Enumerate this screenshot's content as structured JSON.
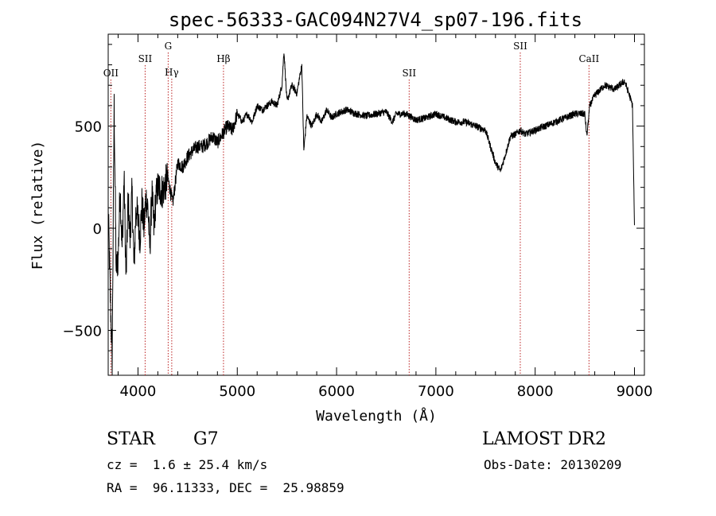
{
  "chart_data": {
    "type": "line",
    "title": "spec-56333-GAC094N27V4_sp07-196.fits",
    "xlabel": "Wavelength (Å)",
    "ylabel": "Flux (relative)",
    "xlim": [
      3700,
      9100
    ],
    "ylim": [
      -720,
      950
    ],
    "x_ticks": [
      4000,
      5000,
      6000,
      7000,
      8000,
      9000
    ],
    "y_ticks": [
      -500,
      0,
      500
    ],
    "x_tick_labels": [
      "4000",
      "5000",
      "6000",
      "7000",
      "8000",
      "9000"
    ],
    "y_tick_labels": [
      "−500",
      "0",
      "500"
    ],
    "grid": false,
    "series": [
      {
        "name": "flux",
        "x": [
          3700,
          3720,
          3740,
          3760,
          3780,
          3800,
          3820,
          3840,
          3860,
          3880,
          3900,
          3920,
          3940,
          3960,
          3980,
          4000,
          4020,
          4040,
          4060,
          4080,
          4100,
          4120,
          4140,
          4160,
          4180,
          4200,
          4250,
          4300,
          4350,
          4400,
          4450,
          4500,
          4550,
          4600,
          4650,
          4700,
          4750,
          4800,
          4850,
          4900,
          4950,
          5000,
          5050,
          5100,
          5150,
          5200,
          5250,
          5300,
          5350,
          5400,
          5450,
          5470,
          5500,
          5550,
          5600,
          5650,
          5670,
          5700,
          5750,
          5800,
          5850,
          5900,
          5950,
          6000,
          6100,
          6200,
          6300,
          6400,
          6500,
          6563,
          6600,
          6700,
          6800,
          6900,
          7000,
          7100,
          7200,
          7300,
          7400,
          7500,
          7550,
          7600,
          7650,
          7700,
          7750,
          7800,
          7850,
          7900,
          8000,
          8100,
          8200,
          8300,
          8400,
          8500,
          8520,
          8550,
          8600,
          8700,
          8800,
          8900,
          8950,
          8980,
          9000
        ],
        "values": [
          100,
          -300,
          -650,
          600,
          -200,
          -150,
          200,
          -100,
          250,
          -260,
          150,
          -50,
          180,
          -200,
          100,
          50,
          -50,
          120,
          0,
          150,
          100,
          -100,
          180,
          0,
          150,
          200,
          180,
          250,
          120,
          320,
          300,
          350,
          380,
          400,
          400,
          420,
          450,
          420,
          460,
          500,
          480,
          560,
          520,
          560,
          520,
          600,
          580,
          600,
          620,
          600,
          700,
          870,
          620,
          700,
          660,
          800,
          380,
          550,
          500,
          560,
          520,
          580,
          540,
          560,
          580,
          560,
          550,
          560,
          570,
          520,
          560,
          560,
          530,
          540,
          560,
          540,
          520,
          520,
          500,
          480,
          400,
          320,
          280,
          360,
          450,
          460,
          480,
          460,
          480,
          500,
          520,
          540,
          560,
          560,
          450,
          600,
          650,
          700,
          680,
          720,
          650,
          600,
          0
        ]
      }
    ],
    "annotations": [
      {
        "label": "OII",
        "x": 3727,
        "row": "low"
      },
      {
        "label": "SII",
        "x": 4072,
        "row": "mid"
      },
      {
        "label": "G",
        "x": 4304,
        "row": "high"
      },
      {
        "label": "Hγ",
        "x": 4340,
        "row": "low2"
      },
      {
        "label": "Hβ",
        "x": 4861,
        "row": "mid"
      },
      {
        "label": "SII",
        "x": 6731,
        "row": "low"
      },
      {
        "label": "SII",
        "x": 7850,
        "row": "high"
      },
      {
        "label": "CaII",
        "x": 8542,
        "row": "mid"
      }
    ]
  },
  "info": {
    "object_class": "STAR",
    "subclass": "G7",
    "survey": "LAMOST DR2",
    "redshift": "cz =  1.6 ± 25.4 km/s",
    "obs_date": "Obs-Date: 20130209",
    "coords": "RA =  96.11333, DEC =  25.98859"
  }
}
